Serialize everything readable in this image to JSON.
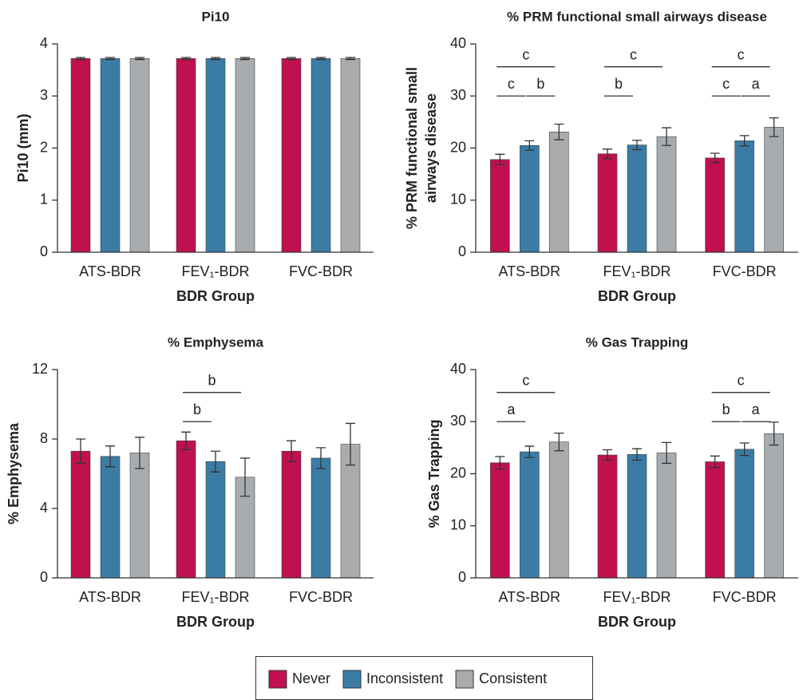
{
  "chart_data": [
    {
      "type": "bar",
      "title": "Pi10",
      "ylabel": "Pi10 (mm)",
      "xlabel": "BDR Group",
      "categories": [
        "ATS-BDR",
        "FEV₁-BDR",
        "FVC-BDR"
      ],
      "ylim": [
        0,
        4
      ],
      "yticks": [
        0,
        1,
        2,
        3,
        4
      ],
      "series": [
        {
          "name": "Never",
          "color": "#c0104f",
          "values": [
            3.72,
            3.72,
            3.72
          ],
          "errors": [
            0.02,
            0.02,
            0.02
          ]
        },
        {
          "name": "Inconsistent",
          "color": "#3b7ca4",
          "values": [
            3.72,
            3.72,
            3.72
          ],
          "errors": [
            0.02,
            0.02,
            0.02
          ]
        },
        {
          "name": "Consistent",
          "color": "#a8acaf",
          "values": [
            3.72,
            3.72,
            3.72
          ],
          "errors": [
            0.02,
            0.02,
            0.02
          ]
        }
      ],
      "annotations": []
    },
    {
      "type": "bar",
      "title": "% PRM functional small airways disease",
      "ylabel": [
        "% PRM functional small",
        "airways disease"
      ],
      "xlabel": "BDR Group",
      "categories": [
        "ATS-BDR",
        "FEV₁-BDR",
        "FVC-BDR"
      ],
      "ylim": [
        0,
        40
      ],
      "yticks": [
        0,
        10,
        20,
        30,
        40
      ],
      "series": [
        {
          "name": "Never",
          "color": "#c0104f",
          "values": [
            17.8,
            18.9,
            18.1
          ],
          "errors": [
            1.0,
            0.9,
            0.9
          ]
        },
        {
          "name": "Inconsistent",
          "color": "#3b7ca4",
          "values": [
            20.5,
            20.6,
            21.4
          ],
          "errors": [
            0.9,
            0.9,
            1.0
          ]
        },
        {
          "name": "Consistent",
          "color": "#a8acaf",
          "values": [
            23.1,
            22.2,
            24.0
          ],
          "errors": [
            1.5,
            1.7,
            1.8
          ]
        }
      ],
      "annotations": [
        {
          "label": "c",
          "category": 0,
          "from": 0,
          "to": 2
        },
        {
          "label": "c",
          "category": 0,
          "from": 0,
          "to": 1
        },
        {
          "label": "b",
          "category": 0,
          "from": 1,
          "to": 2
        },
        {
          "label": "c",
          "category": 1,
          "from": 0,
          "to": 2
        },
        {
          "label": "b",
          "category": 1,
          "from": 0,
          "to": 1
        },
        {
          "label": "c",
          "category": 2,
          "from": 0,
          "to": 2
        },
        {
          "label": "c",
          "category": 2,
          "from": 0,
          "to": 1
        },
        {
          "label": "a",
          "category": 2,
          "from": 1,
          "to": 2
        }
      ]
    },
    {
      "type": "bar",
      "title": "% Emphysema",
      "ylabel": "% Emphysema",
      "xlabel": "BDR Group",
      "categories": [
        "ATS-BDR",
        "FEV₁-BDR",
        "FVC-BDR"
      ],
      "ylim": [
        0,
        12
      ],
      "yticks": [
        0,
        4,
        8,
        12
      ],
      "series": [
        {
          "name": "Never",
          "color": "#c0104f",
          "values": [
            7.3,
            7.9,
            7.3
          ],
          "errors": [
            0.7,
            0.5,
            0.6
          ]
        },
        {
          "name": "Inconsistent",
          "color": "#3b7ca4",
          "values": [
            7.0,
            6.7,
            6.9
          ],
          "errors": [
            0.6,
            0.6,
            0.6
          ]
        },
        {
          "name": "Consistent",
          "color": "#a8acaf",
          "values": [
            7.2,
            5.8,
            7.7
          ],
          "errors": [
            0.9,
            1.1,
            1.2
          ]
        }
      ],
      "annotations": [
        {
          "label": "b",
          "category": 1,
          "from": 0,
          "to": 2
        },
        {
          "label": "b",
          "category": 1,
          "from": 0,
          "to": 1
        }
      ]
    },
    {
      "type": "bar",
      "title": "% Gas Trapping",
      "ylabel": "% Gas Trapping",
      "xlabel": "BDR Group",
      "categories": [
        "ATS-BDR",
        "FEV₁-BDR",
        "FVC-BDR"
      ],
      "ylim": [
        0,
        40
      ],
      "yticks": [
        0,
        10,
        20,
        30,
        40
      ],
      "series": [
        {
          "name": "Never",
          "color": "#c0104f",
          "values": [
            22.1,
            23.6,
            22.3
          ],
          "errors": [
            1.2,
            1.0,
            1.1
          ]
        },
        {
          "name": "Inconsistent",
          "color": "#3b7ca4",
          "values": [
            24.2,
            23.7,
            24.7
          ],
          "errors": [
            1.1,
            1.1,
            1.2
          ]
        },
        {
          "name": "Consistent",
          "color": "#a8acaf",
          "values": [
            26.1,
            24.0,
            27.7
          ],
          "errors": [
            1.7,
            2.0,
            2.2
          ]
        }
      ],
      "annotations": [
        {
          "label": "c",
          "category": 0,
          "from": 0,
          "to": 2
        },
        {
          "label": "a",
          "category": 0,
          "from": 0,
          "to": 1
        },
        {
          "label": "c",
          "category": 2,
          "from": 0,
          "to": 2
        },
        {
          "label": "b",
          "category": 2,
          "from": 0,
          "to": 1
        },
        {
          "label": "a",
          "category": 2,
          "from": 1,
          "to": 2
        }
      ]
    }
  ]
}
